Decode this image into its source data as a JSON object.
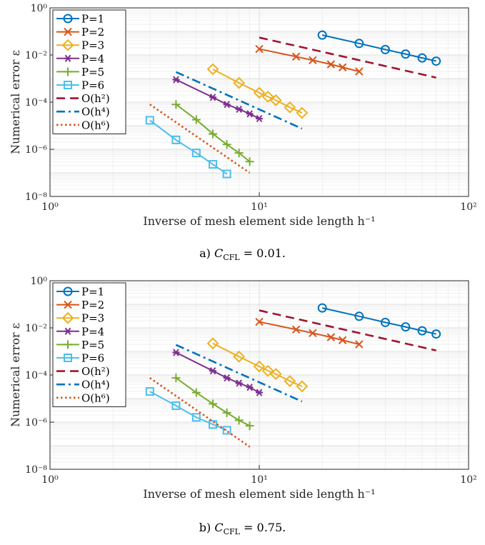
{
  "chart_data": [
    {
      "type": "line",
      "caption": "a) C_CFL = 0.01.",
      "caption_parts": {
        "prefix": "a) ",
        "symbol": "C",
        "subscript": "CFL",
        "suffix": " = 0.01."
      },
      "xlabel": "Inverse of mesh element side length h⁻¹",
      "ylabel": "Numerical error ε",
      "xscale": "log",
      "yscale": "log",
      "xlim": [
        1,
        100
      ],
      "ylim": [
        1e-08,
        1
      ],
      "xticks": [
        "10⁰",
        "10¹",
        "10²"
      ],
      "yticks": [
        "10⁻⁸",
        "10⁻⁶",
        "10⁻⁴",
        "10⁻²",
        "10⁰"
      ],
      "grid": true,
      "legend": "top-left",
      "series": [
        {
          "name": "P=1",
          "color": "#0072BD",
          "marker": "circle",
          "style": "solid",
          "x": [
            20,
            30,
            40,
            50,
            60,
            70
          ],
          "y": [
            0.07,
            0.031,
            0.017,
            0.011,
            0.0075,
            0.0055
          ]
        },
        {
          "name": "P=2",
          "color": "#D95319",
          "marker": "x",
          "style": "solid",
          "x": [
            10,
            15,
            18,
            22,
            25,
            30
          ],
          "y": [
            0.018,
            0.0085,
            0.006,
            0.004,
            0.003,
            0.002
          ]
        },
        {
          "name": "P=3",
          "color": "#EDB120",
          "marker": "diamond",
          "style": "solid",
          "x": [
            6,
            8,
            10,
            11,
            12,
            14,
            16
          ],
          "y": [
            0.0025,
            0.00065,
            0.00025,
            0.00017,
            0.00012,
            6e-05,
            3.5e-05
          ]
        },
        {
          "name": "P=4",
          "color": "#7E2F8E",
          "marker": "asterisk",
          "style": "solid",
          "x": [
            4,
            6,
            7,
            8,
            9,
            10
          ],
          "y": [
            0.0009,
            0.00016,
            8e-05,
            5e-05,
            3.2e-05,
            2e-05
          ]
        },
        {
          "name": "P=5",
          "color": "#77AC30",
          "marker": "plus",
          "style": "solid",
          "x": [
            4,
            5,
            6,
            7,
            8,
            9
          ],
          "y": [
            8e-05,
            1.8e-05,
            4.5e-06,
            1.6e-06,
            7e-07,
            3e-07
          ]
        },
        {
          "name": "P=6",
          "color": "#4DBEEE",
          "marker": "square",
          "style": "solid",
          "x": [
            3,
            4,
            5,
            6,
            7
          ],
          "y": [
            1.7e-05,
            2.5e-06,
            7e-07,
            2.3e-07,
            9e-08
          ]
        },
        {
          "name": "O(h²)",
          "color": "#A2142F",
          "marker": "none",
          "style": "dashed",
          "x": [
            10,
            70
          ],
          "y": [
            0.055,
            0.0011
          ]
        },
        {
          "name": "O(h⁴)",
          "color": "#0072BD",
          "marker": "none",
          "style": "dashdot",
          "x": [
            4,
            16
          ],
          "y": [
            0.0019,
            7.5e-06
          ]
        },
        {
          "name": "O(h⁶)",
          "color": "#D95319",
          "marker": "none",
          "style": "dotted",
          "x": [
            3,
            9
          ],
          "y": [
            8e-05,
            1e-07
          ]
        }
      ]
    },
    {
      "type": "line",
      "caption": "b) C_CFL = 0.75.",
      "caption_parts": {
        "prefix": "b) ",
        "symbol": "C",
        "subscript": "CFL",
        "suffix": " = 0.75."
      },
      "xlabel": "Inverse of mesh element side length h⁻¹",
      "ylabel": "Numerical error ε",
      "xscale": "log",
      "yscale": "log",
      "xlim": [
        1,
        100
      ],
      "ylim": [
        1e-08,
        1
      ],
      "xticks": [
        "10⁰",
        "10¹",
        "10²"
      ],
      "yticks": [
        "10⁻⁸",
        "10⁻⁶",
        "10⁻⁴",
        "10⁻²",
        "10⁰"
      ],
      "grid": true,
      "legend": "top-left",
      "series": [
        {
          "name": "P=1",
          "color": "#0072BD",
          "marker": "circle",
          "style": "solid",
          "x": [
            20,
            30,
            40,
            50,
            60,
            70
          ],
          "y": [
            0.07,
            0.031,
            0.017,
            0.011,
            0.0075,
            0.0055
          ]
        },
        {
          "name": "P=2",
          "color": "#D95319",
          "marker": "x",
          "style": "solid",
          "x": [
            10,
            15,
            18,
            22,
            25,
            30
          ],
          "y": [
            0.018,
            0.0085,
            0.006,
            0.004,
            0.003,
            0.002
          ]
        },
        {
          "name": "P=3",
          "color": "#EDB120",
          "marker": "diamond",
          "style": "solid",
          "x": [
            6,
            8,
            10,
            11,
            12,
            14,
            16
          ],
          "y": [
            0.0022,
            0.0006,
            0.00023,
            0.00015,
            0.00011,
            5.5e-05,
            3.3e-05
          ]
        },
        {
          "name": "P=4",
          "color": "#7E2F8E",
          "marker": "asterisk",
          "style": "solid",
          "x": [
            4,
            6,
            7,
            8,
            9,
            10
          ],
          "y": [
            0.0009,
            0.00015,
            7.5e-05,
            4.5e-05,
            3e-05,
            1.8e-05
          ]
        },
        {
          "name": "P=5",
          "color": "#77AC30",
          "marker": "plus",
          "style": "solid",
          "x": [
            4,
            5,
            6,
            7,
            8,
            9
          ],
          "y": [
            7.5e-05,
            1.8e-05,
            6e-06,
            2.5e-06,
            1.2e-06,
            7e-07
          ]
        },
        {
          "name": "P=6",
          "color": "#4DBEEE",
          "marker": "square",
          "style": "solid",
          "x": [
            3,
            4,
            5,
            6,
            7
          ],
          "y": [
            2e-05,
            5e-06,
            1.6e-06,
            8e-07,
            4.5e-07
          ]
        },
        {
          "name": "O(h²)",
          "color": "#A2142F",
          "marker": "none",
          "style": "dashed",
          "x": [
            10,
            70
          ],
          "y": [
            0.055,
            0.0011
          ]
        },
        {
          "name": "O(h⁴)",
          "color": "#0072BD",
          "marker": "none",
          "style": "dashdot",
          "x": [
            4,
            16
          ],
          "y": [
            0.0019,
            7.5e-06
          ]
        },
        {
          "name": "O(h⁶)",
          "color": "#D95319",
          "marker": "none",
          "style": "dotted",
          "x": [
            3,
            9
          ],
          "y": [
            7.5e-05,
            9e-08
          ]
        }
      ]
    }
  ]
}
